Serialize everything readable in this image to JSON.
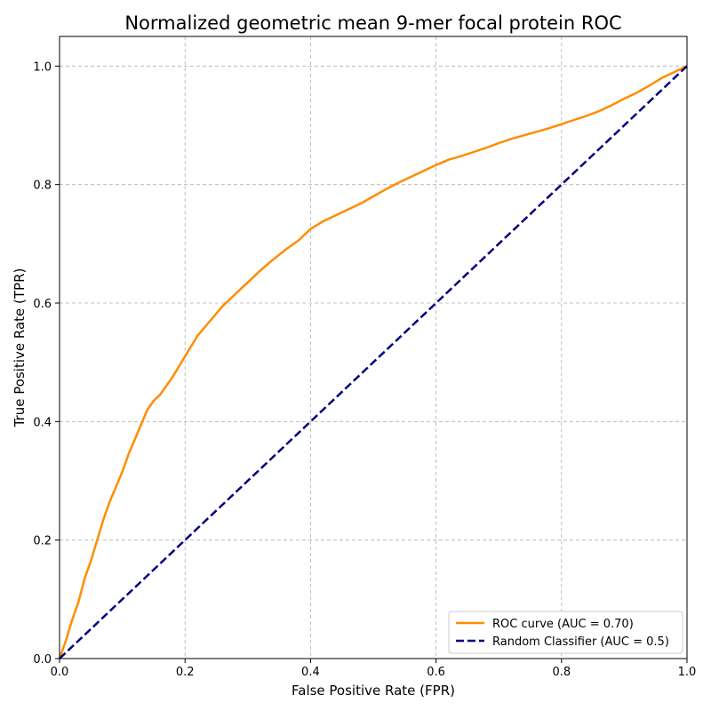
{
  "chart_data": {
    "type": "line",
    "title": "Normalized geometric mean 9-mer focal protein ROC",
    "xlabel": "False Positive Rate (FPR)",
    "ylabel": "True Positive Rate (TPR)",
    "xlim": [
      0.0,
      1.0
    ],
    "ylim": [
      0.0,
      1.05
    ],
    "xticks": [
      "0.0",
      "0.2",
      "0.4",
      "0.6",
      "0.8",
      "1.0"
    ],
    "yticks": [
      "0.0",
      "0.2",
      "0.4",
      "0.6",
      "0.8",
      "1.0"
    ],
    "grid": true,
    "legend_position": "lower-right",
    "series": [
      {
        "name": "ROC curve (AUC = 0.70)",
        "color": "#ff8c00",
        "style": "solid",
        "x": [
          0.0,
          0.01,
          0.02,
          0.03,
          0.04,
          0.05,
          0.06,
          0.07,
          0.08,
          0.09,
          0.1,
          0.11,
          0.12,
          0.13,
          0.14,
          0.15,
          0.16,
          0.18,
          0.2,
          0.22,
          0.24,
          0.26,
          0.28,
          0.3,
          0.32,
          0.34,
          0.36,
          0.38,
          0.4,
          0.42,
          0.44,
          0.46,
          0.48,
          0.5,
          0.52,
          0.54,
          0.56,
          0.58,
          0.6,
          0.62,
          0.64,
          0.66,
          0.68,
          0.7,
          0.72,
          0.74,
          0.76,
          0.78,
          0.8,
          0.82,
          0.84,
          0.86,
          0.88,
          0.9,
          0.92,
          0.94,
          0.96,
          0.98,
          1.0
        ],
        "y": [
          0.0,
          0.03,
          0.065,
          0.095,
          0.135,
          0.165,
          0.2,
          0.235,
          0.265,
          0.29,
          0.315,
          0.345,
          0.37,
          0.395,
          0.42,
          0.435,
          0.445,
          0.475,
          0.51,
          0.545,
          0.57,
          0.595,
          0.615,
          0.635,
          0.655,
          0.673,
          0.69,
          0.705,
          0.725,
          0.738,
          0.748,
          0.758,
          0.768,
          0.78,
          0.792,
          0.803,
          0.813,
          0.823,
          0.833,
          0.842,
          0.848,
          0.855,
          0.862,
          0.87,
          0.877,
          0.883,
          0.889,
          0.895,
          0.902,
          0.909,
          0.916,
          0.924,
          0.934,
          0.945,
          0.955,
          0.967,
          0.98,
          0.99,
          1.0
        ]
      },
      {
        "name": "Random Classifier (AUC = 0.5)",
        "color": "#000080",
        "style": "dashed",
        "x": [
          0.0,
          1.0
        ],
        "y": [
          0.0,
          1.0
        ]
      }
    ]
  }
}
